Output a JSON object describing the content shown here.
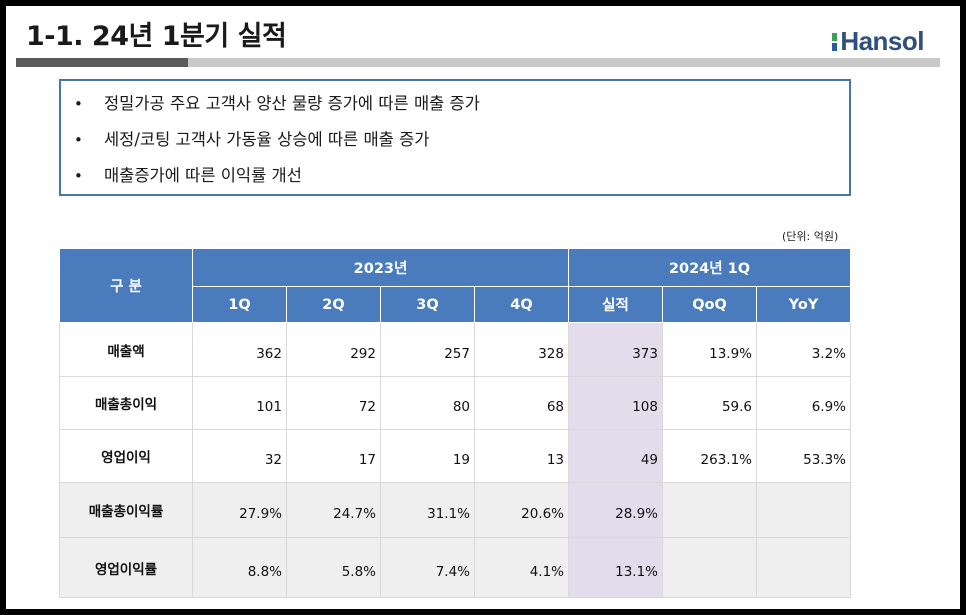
{
  "slide": {
    "title": "1-1. 24년 1분기 실적",
    "logo_text": "Hansol"
  },
  "summary": [
    "정밀가공 주요 고객사 양산 물량 증가에 따른 매출 증가",
    "세정/코팅 고객사 가동율 상승에 따른 매출 증가",
    "매출증가에 따른 이익률 개선"
  ],
  "unit_label": "(단위: 억원)",
  "table": {
    "row_header_label": "구  분",
    "group_2023": "2023년",
    "group_2024": "2024년 1Q",
    "columns": [
      "1Q",
      "2Q",
      "3Q",
      "4Q",
      "실적",
      "QoQ",
      "YoY"
    ],
    "rows": [
      {
        "label": "매출액",
        "cells": [
          "362",
          "292",
          "257",
          "328",
          "373",
          "13.9%",
          "3.2%"
        ]
      },
      {
        "label": "매출총이익",
        "cells": [
          "101",
          "72",
          "80",
          "68",
          "108",
          "59.6",
          "6.9%"
        ]
      },
      {
        "label": "영업이익",
        "cells": [
          "32",
          "17",
          "19",
          "13",
          "49",
          "263.1%",
          "53.3%"
        ]
      },
      {
        "label": "매출총이익률",
        "cells": [
          "27.9%",
          "24.7%",
          "31.1%",
          "20.6%",
          "28.9%",
          "",
          ""
        ]
      },
      {
        "label": "영업이익률",
        "cells": [
          "8.8%",
          "5.8%",
          "7.4%",
          "4.1%",
          "13.1%",
          "",
          ""
        ]
      }
    ]
  },
  "colors": {
    "header_blue": "#4a7bbd",
    "highlight_purple": "#e3dcec",
    "box_border": "#4a74a8"
  }
}
